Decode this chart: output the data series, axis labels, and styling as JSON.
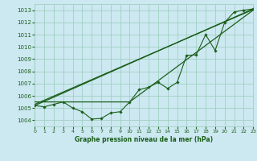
{
  "title": "Graphe pression niveau de la mer (hPa)",
  "bg_color": "#cce8f0",
  "grid_color": "#99ccbb",
  "line_color": "#1a5e1a",
  "xlim": [
    0,
    23
  ],
  "ylim": [
    1003.5,
    1013.5
  ],
  "yticks": [
    1004,
    1005,
    1006,
    1007,
    1008,
    1009,
    1010,
    1011,
    1012,
    1013
  ],
  "xticks": [
    0,
    1,
    2,
    3,
    4,
    5,
    6,
    7,
    8,
    9,
    10,
    11,
    12,
    13,
    14,
    15,
    16,
    17,
    18,
    19,
    20,
    21,
    22,
    23
  ],
  "series_main": {
    "x": [
      0,
      1,
      2,
      3,
      4,
      5,
      6,
      7,
      8,
      9,
      10,
      11,
      12,
      13,
      14,
      15,
      16,
      17,
      18,
      19,
      20,
      21,
      22,
      23
    ],
    "y": [
      1005.2,
      1005.1,
      1005.3,
      1005.5,
      1005.0,
      1004.7,
      1004.1,
      1004.15,
      1004.6,
      1004.7,
      1005.5,
      1006.5,
      1006.7,
      1007.1,
      1006.6,
      1007.1,
      1009.3,
      1009.35,
      1011.0,
      1009.7,
      1012.0,
      1012.85,
      1013.0,
      1013.1
    ]
  },
  "series_straight1": {
    "x": [
      0,
      23
    ],
    "y": [
      1005.2,
      1013.1
    ]
  },
  "series_flat_then_up": {
    "x": [
      0,
      3,
      10,
      23
    ],
    "y": [
      1005.5,
      1005.5,
      1005.5,
      1013.0
    ]
  },
  "series_mid": {
    "x": [
      0,
      23
    ],
    "y": [
      1005.3,
      1013.05
    ]
  }
}
